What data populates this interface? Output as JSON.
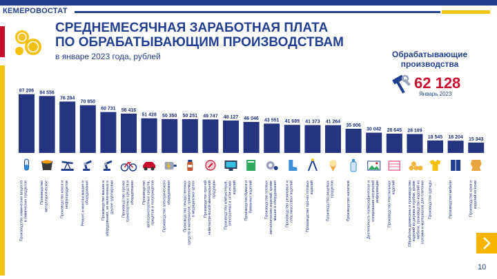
{
  "header": {
    "brand": "КЕМЕРОВОСТАТ",
    "title_line1": "СРЕДНЕМЕСЯЧНАЯ ЗАРАБОТНАЯ ПЛАТА",
    "title_line2": "ПО ОБРАБАТЫВАЮЩИМ ПРОИЗВОДСТВАМ",
    "subtitle": "в январе 2023 года, рублей"
  },
  "kpi": {
    "label_line1": "Обрабатывающие",
    "label_line2": "производства",
    "value": "62 128",
    "date": "Январь 2023",
    "icon": "hammer-wrench-icon"
  },
  "colors": {
    "bar": "#24347f",
    "accent_red": "#c8102e",
    "accent_yellow": "#f4c20d",
    "brand_blue": "#223f8f"
  },
  "chart_data": {
    "type": "bar",
    "title": "СРЕДНЕМЕСЯЧНАЯ ЗАРАБОТНАЯ ПЛАТА ПО ОБРАБАТЫВАЮЩИМ ПРОИЗВОДСТВАМ",
    "subtitle": "в январе 2023 года, рублей",
    "ylim": [
      0,
      90000
    ],
    "grid": false,
    "value_labels": [
      "87 206",
      "84 556",
      "76 284",
      "70 850",
      "60 731",
      "58 416",
      "51 428",
      "50 350",
      "50 251",
      "49 747",
      "48 127",
      "46 046",
      "43 551",
      "41 689",
      "41 373",
      "41 264",
      "35 906",
      "30 042",
      "28 645",
      "28 109",
      "18 545",
      "18 204",
      "15 343"
    ],
    "values": [
      87206,
      84556,
      76284,
      70850,
      60731,
      58416,
      51428,
      50350,
      50251,
      49747,
      48127,
      46046,
      43551,
      41689,
      41373,
      41264,
      35906,
      30042,
      28645,
      28109,
      18545,
      18204,
      15343
    ],
    "categories": [
      [
        "Производство химических веществ",
        "и химических продуктов"
      ],
      [
        "Производство",
        "металлургическое"
      ],
      [
        "Производство кокса и",
        "нефтепродуктов"
      ],
      [
        "Ремонт и монтаж машин и",
        "оборудования"
      ],
      [
        "Производство машин и",
        "оборудования, не включенных в",
        "другие группировки"
      ],
      [
        "Производство прочих",
        "транспортных средств и",
        "оборудования"
      ],
      [
        "Производство",
        "автотранспортных средств,",
        "прицепов и полуприцепов"
      ],
      [
        "Производство электрического",
        "оборудования"
      ],
      [
        "Производство лекарственных",
        "средств и материалов, применяемых",
        "в медицинских целях"
      ],
      [
        "Производство прочей",
        "неметаллической минеральной",
        "продукции"
      ],
      [
        "Производство компьютеров,",
        "электронных и оптических",
        "изделий"
      ],
      [
        "Производство бумаги и",
        "бумажных изделий"
      ],
      [
        "Производство готовых",
        "металлических изделий, кроме",
        "машин и оборудования"
      ],
      [
        "Производство резиновых и",
        "пластмассовых изделий"
      ],
      [
        "Производство прочих готовых",
        "изделий"
      ],
      [
        "Производство пищевых",
        "продуктов"
      ],
      [
        "Производство напитков"
      ],
      [
        "Деятельность полиграфическая и",
        "копирование носителей",
        "информации"
      ],
      [
        "Производство текстильных",
        "изделий"
      ],
      [
        "Обработка древесины и производство",
        "изделий из дерева и пробки, кроме",
        "мебели, производство изделий из",
        "соломки и материалов для плетения"
      ],
      [
        "Производство одежды"
      ],
      [
        "Производство мебели"
      ],
      [
        "Производство кожи и",
        "изделий из кожи"
      ]
    ],
    "icons": [
      "test-tube-icon",
      "steel-ladle-icon",
      "oil-pump-icon",
      "robot-arm-icon",
      "robot-arm-icon",
      "bicycle-icon",
      "car-icon",
      "electric-motor-icon",
      "medicine-bottle-icon",
      "mineral-product-icon",
      "computer-monitor-icon",
      "paper-book-icon",
      "metal-gear-icon",
      "rubber-boot-icon",
      "pencil-compass-icon",
      "ice-cream-icon",
      "water-bottle-icon",
      "printed-picture-icon",
      "textile-icon",
      "wood-logs-icon",
      "clothing-icon",
      "cabinet-icon",
      "leather-hide-icon"
    ]
  },
  "footer": {
    "page_number": "10",
    "next_icon": "chevron-right-icon"
  }
}
